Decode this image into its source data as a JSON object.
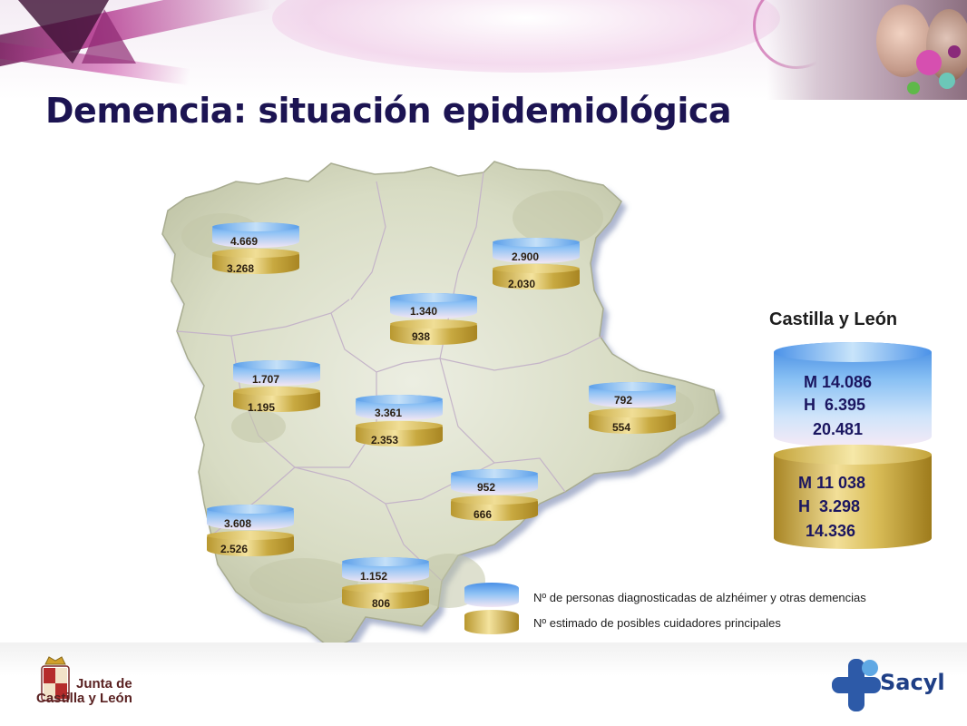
{
  "title": "Demencia: situación epidemiológica",
  "provinces": [
    {
      "id": "leon",
      "diagnosed": "4.669",
      "caregivers": "3.268"
    },
    {
      "id": "burgos",
      "diagnosed": "2.900",
      "caregivers": "2.030"
    },
    {
      "id": "palencia",
      "diagnosed": "1.340",
      "caregivers": "938"
    },
    {
      "id": "zamora",
      "diagnosed": "1.707",
      "caregivers": "1.195"
    },
    {
      "id": "valladolid",
      "diagnosed": "3.361",
      "caregivers": "2.353"
    },
    {
      "id": "soria",
      "diagnosed": "792",
      "caregivers": "554"
    },
    {
      "id": "segovia",
      "diagnosed": "952",
      "caregivers": "666"
    },
    {
      "id": "salamanca",
      "diagnosed": "3.608",
      "caregivers": "2.526"
    },
    {
      "id": "avila",
      "diagnosed": "1.152",
      "caregivers": "806"
    }
  ],
  "region": {
    "title": "Castilla y León",
    "diagnosed": {
      "women": "M 14.086",
      "men": "H  6.395",
      "total": "20.481"
    },
    "caregivers": {
      "women": "M 11 038",
      "men": "H  3.298",
      "total": "14.336"
    }
  },
  "legend": {
    "diagnosed": "Nº de personas diagnosticadas de alzhéimer y otras demencias",
    "caregivers": "Nº estimado de posibles cuidadores principales"
  },
  "footer": {
    "junta_line1": "Junta de",
    "junta_line2": "Castilla y León",
    "sacyl": "Sacyl"
  },
  "colors": {
    "title": "#1c1452",
    "diagnosed_cylinder": "#6aaaf0",
    "caregivers_cylinder": "#d9bd58",
    "map_fill": "#d9dcc4"
  }
}
